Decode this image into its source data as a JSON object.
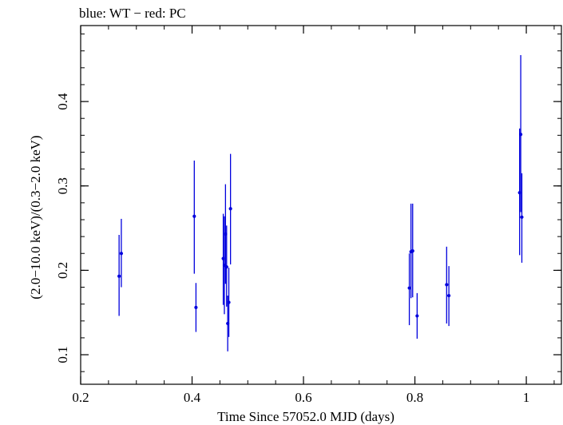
{
  "chart_data": {
    "type": "scatter",
    "title": "blue: WT − red: PC",
    "xlabel": "Time Since 57052.0 MJD (days)",
    "ylabel": "(2.0−10.0 keV)/(0.3−2.0 keV)",
    "xlim": [
      0.2,
      1.063
    ],
    "ylim": [
      0.065,
      0.49
    ],
    "x_major_ticks": [
      0.2,
      0.4,
      0.6,
      0.8,
      1.0
    ],
    "x_tick_labels": [
      "0.2",
      "0.4",
      "0.6",
      "0.8",
      "1"
    ],
    "y_major_ticks": [
      0.1,
      0.2,
      0.3,
      0.4
    ],
    "y_tick_labels": [
      "0.1",
      "0.2",
      "0.3",
      "0.4"
    ],
    "x_minor_step": 0.05,
    "y_minor_step": 0.02,
    "grid": false,
    "series": [
      {
        "name": "WT",
        "color": "#0000dd",
        "points": [
          {
            "x": 0.269,
            "y": 0.193,
            "yerr_lo": 0.146,
            "yerr_hi": 0.242
          },
          {
            "x": 0.273,
            "y": 0.22,
            "yerr_lo": 0.18,
            "yerr_hi": 0.261
          },
          {
            "x": 0.404,
            "y": 0.264,
            "yerr_lo": 0.196,
            "yerr_hi": 0.33
          },
          {
            "x": 0.407,
            "y": 0.156,
            "yerr_lo": 0.127,
            "yerr_hi": 0.185
          },
          {
            "x": 0.456,
            "y": 0.214,
            "yerr_lo": 0.159,
            "yerr_hi": 0.267
          },
          {
            "x": 0.458,
            "y": 0.206,
            "yerr_lo": 0.148,
            "yerr_hi": 0.264
          },
          {
            "x": 0.46,
            "y": 0.243,
            "yerr_lo": 0.184,
            "yerr_hi": 0.302
          },
          {
            "x": 0.462,
            "y": 0.204,
            "yerr_lo": 0.157,
            "yerr_hi": 0.253
          },
          {
            "x": 0.464,
            "y": 0.137,
            "yerr_lo": 0.104,
            "yerr_hi": 0.17
          },
          {
            "x": 0.466,
            "y": 0.162,
            "yerr_lo": 0.121,
            "yerr_hi": 0.203
          },
          {
            "x": 0.469,
            "y": 0.273,
            "yerr_lo": 0.207,
            "yerr_hi": 0.338
          },
          {
            "x": 0.79,
            "y": 0.179,
            "yerr_lo": 0.135,
            "yerr_hi": 0.22
          },
          {
            "x": 0.793,
            "y": 0.222,
            "yerr_lo": 0.167,
            "yerr_hi": 0.279
          },
          {
            "x": 0.796,
            "y": 0.223,
            "yerr_lo": 0.168,
            "yerr_hi": 0.279
          },
          {
            "x": 0.804,
            "y": 0.146,
            "yerr_lo": 0.119,
            "yerr_hi": 0.173
          },
          {
            "x": 0.857,
            "y": 0.183,
            "yerr_lo": 0.137,
            "yerr_hi": 0.228
          },
          {
            "x": 0.861,
            "y": 0.17,
            "yerr_lo": 0.134,
            "yerr_hi": 0.205
          },
          {
            "x": 0.988,
            "y": 0.292,
            "yerr_lo": 0.218,
            "yerr_hi": 0.368
          },
          {
            "x": 0.99,
            "y": 0.361,
            "yerr_lo": 0.269,
            "yerr_hi": 0.455
          },
          {
            "x": 0.992,
            "y": 0.263,
            "yerr_lo": 0.209,
            "yerr_hi": 0.315
          }
        ]
      }
    ]
  }
}
